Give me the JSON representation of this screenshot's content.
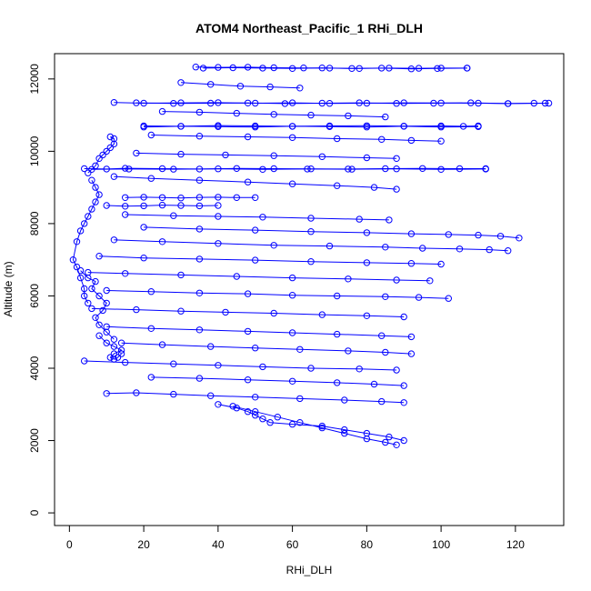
{
  "chart_data": {
    "type": "line",
    "title": "ATOM4 Northeast_Pacific_1 RHi_DLH",
    "xlabel": "RHi_DLH",
    "ylabel": "Altitude (m)",
    "xlim": [
      -4,
      133
    ],
    "ylim": [
      -350,
      12700
    ],
    "x_ticks": [
      0,
      20,
      40,
      60,
      80,
      100,
      120
    ],
    "y_ticks": [
      0,
      2000,
      4000,
      6000,
      8000,
      10000,
      12000
    ],
    "grid": false,
    "series_color": "#0000ff",
    "marker": "open-circle",
    "series": [
      {
        "x": [
          34,
          40,
          48,
          55,
          63,
          70,
          78,
          86,
          94,
          100,
          107
        ],
        "y": [
          12330,
          12320,
          12325,
          12310,
          12305,
          12300,
          12290,
          12300,
          12295,
          12300,
          12300
        ]
      },
      {
        "x": [
          107,
          99,
          92,
          84,
          76,
          68,
          60,
          52,
          44,
          36
        ],
        "y": [
          12300,
          12290,
          12280,
          12300,
          12290,
          12305,
          12290,
          12300,
          12310,
          12300
        ]
      },
      {
        "x": [
          12,
          20,
          30,
          40,
          50,
          60,
          70,
          80,
          90,
          100,
          110,
          118,
          125,
          129
        ],
        "y": [
          11350,
          11330,
          11340,
          11345,
          11330,
          11340,
          11325,
          11330,
          11340,
          11335,
          11330,
          11320,
          11330,
          11330
        ]
      },
      {
        "x": [
          128,
          118,
          108,
          98,
          88,
          78,
          68,
          58,
          48,
          38,
          28,
          18
        ],
        "y": [
          11330,
          11320,
          11340,
          11330,
          11325,
          11340,
          11330,
          11320,
          11335,
          11330,
          11325,
          11340
        ]
      },
      {
        "x": [
          20,
          30,
          40,
          50,
          60,
          70,
          80,
          90,
          100,
          106,
          110
        ],
        "y": [
          10700,
          10690,
          10710,
          10700,
          10690,
          10700,
          10705,
          10695,
          10700,
          10690,
          10700
        ]
      },
      {
        "x": [
          110,
          100,
          90,
          80,
          70,
          60,
          50,
          40,
          30,
          20
        ],
        "y": [
          10680,
          10670,
          10690,
          10670,
          10680,
          10690,
          10670,
          10680,
          10690,
          10670
        ]
      },
      {
        "x": [
          4,
          10,
          15,
          25,
          35,
          45,
          55,
          65,
          75,
          85,
          95,
          105,
          112
        ],
        "y": [
          9520,
          9510,
          9530,
          9520,
          9510,
          9525,
          9520,
          9515,
          9510,
          9520,
          9525,
          9520,
          9520
        ]
      },
      {
        "x": [
          112,
          100,
          88,
          76,
          64,
          52,
          40,
          28,
          16,
          6
        ],
        "y": [
          9510,
          9500,
          9515,
          9505,
          9510,
          9500,
          9515,
          9505,
          9510,
          9500
        ]
      },
      {
        "x": [
          15,
          20,
          25,
          30,
          35,
          40,
          45,
          50
        ],
        "y": [
          8720,
          8730,
          8720,
          8710,
          8725,
          8730,
          8720,
          8720
        ]
      },
      {
        "x": [
          10,
          15,
          20,
          25,
          30,
          35,
          40
        ],
        "y": [
          8500,
          8480,
          8490,
          8510,
          8500,
          8490,
          8500
        ]
      },
      {
        "x": [
          5,
          7,
          8,
          9,
          10,
          11,
          12,
          12,
          11
        ],
        "y": [
          9400,
          9600,
          9800,
          9900,
          10000,
          10100,
          10200,
          10350,
          10400
        ]
      },
      {
        "x": [
          6,
          7,
          8,
          7,
          6,
          5,
          4,
          3,
          2,
          1,
          2,
          3,
          4,
          4,
          5
        ],
        "y": [
          9200,
          9000,
          8800,
          8600,
          8400,
          8200,
          8000,
          7800,
          7500,
          7000,
          6800,
          6500,
          6200,
          6000,
          5800
        ]
      },
      {
        "x": [
          3,
          5,
          7,
          6,
          8,
          10,
          9,
          7,
          8,
          10,
          12
        ],
        "y": [
          6700,
          6500,
          6400,
          6200,
          6000,
          5800,
          5600,
          5400,
          5200,
          5000,
          4800
        ]
      },
      {
        "x": [
          8,
          10,
          12,
          14,
          12,
          11,
          12,
          13,
          14
        ],
        "y": [
          4900,
          4700,
          4600,
          4500,
          4400,
          4300,
          4250,
          4300,
          4400
        ]
      },
      {
        "x": [
          20,
          35,
          50,
          65,
          80,
          92,
          102,
          110,
          116,
          121
        ],
        "y": [
          7900,
          7850,
          7820,
          7780,
          7750,
          7720,
          7700,
          7680,
          7650,
          7600
        ]
      },
      {
        "x": [
          12,
          25,
          40,
          55,
          70,
          85,
          95,
          105,
          113,
          118
        ],
        "y": [
          7550,
          7500,
          7450,
          7400,
          7380,
          7350,
          7320,
          7300,
          7280,
          7250
        ]
      },
      {
        "x": [
          8,
          20,
          35,
          50,
          65,
          80,
          92,
          100
        ],
        "y": [
          7100,
          7050,
          7020,
          6990,
          6950,
          6920,
          6900,
          6880
        ]
      },
      {
        "x": [
          5,
          15,
          30,
          45,
          60,
          75,
          88,
          97
        ],
        "y": [
          6650,
          6620,
          6580,
          6540,
          6500,
          6470,
          6440,
          6420
        ]
      },
      {
        "x": [
          10,
          22,
          35,
          48,
          60,
          72,
          85,
          94,
          102
        ],
        "y": [
          6150,
          6120,
          6080,
          6060,
          6020,
          6000,
          5980,
          5960,
          5930
        ]
      },
      {
        "x": [
          6,
          18,
          30,
          42,
          55,
          68,
          80,
          90
        ],
        "y": [
          5650,
          5620,
          5580,
          5550,
          5520,
          5480,
          5450,
          5420
        ]
      },
      {
        "x": [
          10,
          22,
          35,
          48,
          60,
          72,
          84,
          92
        ],
        "y": [
          5150,
          5100,
          5060,
          5020,
          4980,
          4940,
          4900,
          4870
        ]
      },
      {
        "x": [
          14,
          25,
          38,
          50,
          62,
          75,
          85,
          92
        ],
        "y": [
          4700,
          4650,
          4600,
          4560,
          4520,
          4480,
          4440,
          4400
        ]
      },
      {
        "x": [
          4,
          15,
          28,
          40,
          52,
          65,
          78,
          88
        ],
        "y": [
          4200,
          4160,
          4120,
          4080,
          4040,
          4000,
          3980,
          3950
        ]
      },
      {
        "x": [
          22,
          35,
          48,
          60,
          72,
          82,
          90
        ],
        "y": [
          3750,
          3720,
          3680,
          3640,
          3600,
          3560,
          3520
        ]
      },
      {
        "x": [
          10,
          18,
          28,
          38,
          50,
          62,
          74,
          84,
          90
        ],
        "y": [
          3300,
          3320,
          3280,
          3240,
          3200,
          3160,
          3120,
          3080,
          3050
        ]
      },
      {
        "x": [
          40,
          45,
          48,
          50,
          52,
          54,
          60,
          68,
          74,
          80,
          86,
          90
        ],
        "y": [
          3000,
          2900,
          2800,
          2700,
          2600,
          2500,
          2450,
          2400,
          2300,
          2200,
          2100,
          2000
        ]
      },
      {
        "x": [
          44,
          50,
          56,
          62,
          68,
          74,
          80,
          85,
          88
        ],
        "y": [
          2950,
          2800,
          2650,
          2500,
          2350,
          2200,
          2050,
          1950,
          1880
        ]
      },
      {
        "x": [
          12,
          22,
          35,
          48,
          60,
          72,
          82,
          88
        ],
        "y": [
          9300,
          9250,
          9200,
          9150,
          9100,
          9050,
          9000,
          8950
        ]
      },
      {
        "x": [
          15,
          28,
          40,
          52,
          65,
          78,
          86
        ],
        "y": [
          8250,
          8220,
          8200,
          8180,
          8150,
          8120,
          8100
        ]
      },
      {
        "x": [
          18,
          30,
          42,
          55,
          68,
          80,
          88
        ],
        "y": [
          9950,
          9920,
          9900,
          9880,
          9850,
          9820,
          9800
        ]
      },
      {
        "x": [
          22,
          35,
          48,
          60,
          72,
          84,
          92,
          100
        ],
        "y": [
          10450,
          10420,
          10400,
          10380,
          10350,
          10330,
          10300,
          10280
        ]
      },
      {
        "x": [
          25,
          35,
          45,
          55,
          65,
          75,
          85
        ],
        "y": [
          11100,
          11080,
          11050,
          11020,
          11000,
          10980,
          10950
        ]
      },
      {
        "x": [
          30,
          38,
          46,
          54,
          62
        ],
        "y": [
          11900,
          11850,
          11800,
          11780,
          11750
        ]
      }
    ]
  }
}
